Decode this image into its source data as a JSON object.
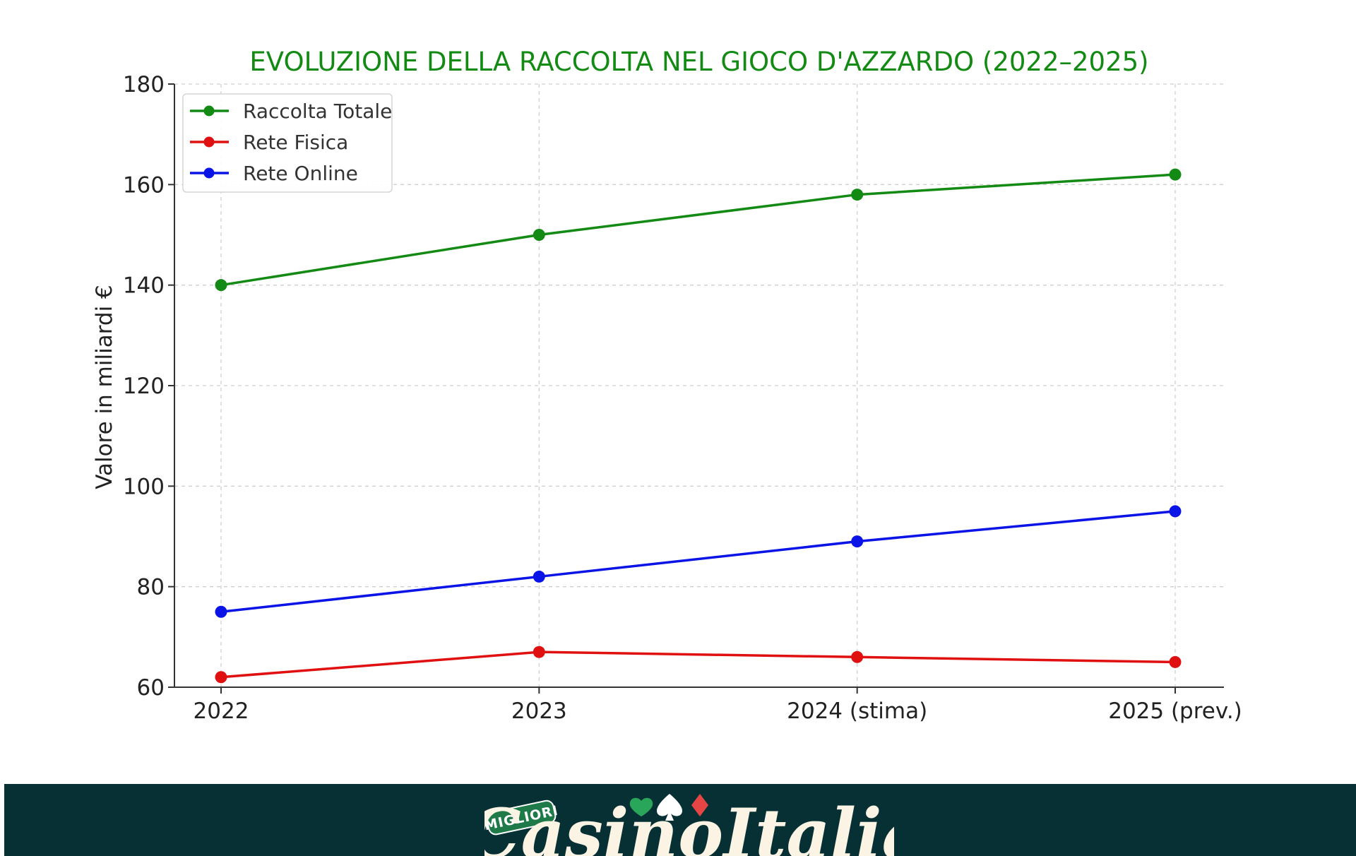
{
  "chart_data": {
    "type": "line",
    "title": "EVOLUZIONE DELLA RACCOLTA NEL GIOCO D'AZZARDO (2022–2025)",
    "xlabel": "",
    "ylabel": "Valore in miliardi €",
    "categories": [
      "2022",
      "2023",
      "2024 (stima)",
      "2025 (prev.)"
    ],
    "ylim": [
      60,
      180
    ],
    "yticks": [
      60,
      80,
      100,
      120,
      140,
      160,
      180
    ],
    "grid": true,
    "legend_position": "top-left",
    "series": [
      {
        "name": "Raccolta Totale",
        "color": "#138a13",
        "values": [
          140,
          150,
          158,
          162
        ]
      },
      {
        "name": "Rete Fisica",
        "color": "#e01010",
        "values": [
          62,
          67,
          66,
          65
        ]
      },
      {
        "name": "Rete Online",
        "color": "#0a14e6",
        "values": [
          75,
          82,
          89,
          95
        ]
      }
    ]
  },
  "footer": {
    "logo_small": "MIGLIORI",
    "logo_main": "CasinoItalia",
    "background": "#063034"
  }
}
